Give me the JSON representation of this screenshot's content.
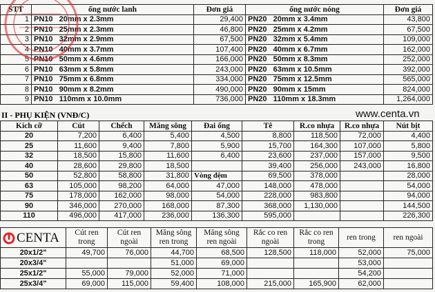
{
  "stamp_text": "TRÁCH NHIỆM HỮU HẠN XÂY DỰNG ... ANH VIỆT",
  "pipes": {
    "headers": [
      "STT",
      "ống nước lanh",
      "Đơn giá",
      "ống nước nóng",
      "Đơn giá"
    ],
    "rows": [
      [
        "1",
        "PN10   20mm x 2.3mm",
        "29,400",
        "PN20   20mm x 3.4mm",
        "43,800"
      ],
      [
        "2",
        "PN10   25mm x 2.3mm",
        "46,800",
        "PN20   25mm x 4.2mm",
        "67,500"
      ],
      [
        "3",
        "PN10   32mm x 2.9mm",
        "67,500",
        "PN20   32mm x 5.4mm",
        "109,000"
      ],
      [
        "4",
        "PN10   40mm x 3.7mm",
        "107,400",
        "PN20   40mm x 6.7mm",
        "162,000"
      ],
      [
        "5",
        "PN10   50mm x 4.6mm",
        "166,000",
        "PN20   50mm x 8.3mm",
        "252,000"
      ],
      [
        "6",
        "PN10   63mm x 5.8mm",
        "243,000",
        "PN20   63mm x 10.5mm",
        "392,000"
      ],
      [
        "7",
        "PN10   75mm x 6.8mm",
        "334,000",
        "PN20   75mm x 12.5mm",
        "565,000"
      ],
      [
        "8",
        "PN10   90mm x 8.2mm",
        "490,000",
        "PN20   90mm x 15mm",
        "824,000"
      ],
      [
        "9",
        "PN10   110mm x 10.0mm",
        "736,000",
        "PN20   110mm x 18.3mm",
        "1,264,000"
      ]
    ]
  },
  "fittings": {
    "title": "II - PHỤ KIỆN (VNĐ/C)",
    "headers": [
      "Kích cỡ",
      "Cút",
      "Chếch",
      "Măng sông",
      "Đai ống",
      "Tê",
      "R.co nhựa",
      "R.co nhựa",
      "Nút bịt"
    ],
    "rows": [
      [
        "20",
        "7,200",
        "6,400",
        "5,400",
        "4,500",
        "8,800",
        "118,500",
        "72,000",
        "4,400"
      ],
      [
        "25",
        "11,600",
        "9,400",
        "7,800",
        "5,900",
        "15,700",
        "164,300",
        "107,000",
        "5,800"
      ],
      [
        "32",
        "18,500",
        "15,800",
        "11,600",
        "6,400",
        "23,600",
        "237,000",
        "157,000",
        "9,500"
      ],
      [
        "40",
        "28,600",
        "29,800",
        "18,500",
        "",
        "39,400",
        "256,000",
        "243,000",
        "16,800"
      ],
      [
        "50",
        "52,800",
        "58,800",
        "31,800",
        "Vòng đệm",
        "69,500",
        "378,000",
        "",
        "28,000"
      ],
      [
        "63",
        "105,000",
        "98,200",
        "64,000",
        "47,000",
        "148,000",
        "478,000",
        "",
        "54,000"
      ],
      [
        "75",
        "178,000",
        "162,000",
        "98,000",
        "54,000",
        "228,000",
        "983,800",
        "",
        "94,000"
      ],
      [
        "90",
        "346,000",
        "270,000",
        "168,000",
        "87,300",
        "368,000",
        "1,130,000",
        "",
        "144,500"
      ],
      [
        "110",
        "496,000",
        "417,000",
        "236,000",
        "136,300",
        "595,000",
        "",
        "",
        "226,300"
      ]
    ]
  },
  "threaded": {
    "headers": [
      "",
      "Cút ren trong",
      "Cút ren ngoài",
      "Măng sông ren trong",
      "Măng sông ren ngoài",
      "Rắc co ren ngoài",
      "Rắc co ren trong",
      "ren trong",
      "ren ngoài"
    ],
    "rows": [
      [
        "20x1/2\"",
        "49,700",
        "76,000",
        "44,700",
        "68,500",
        "128,500",
        "118,000",
        "52,000",
        "75,000"
      ],
      [
        "20x3/4\"",
        "",
        "",
        "51,000",
        "69,000",
        "",
        "",
        "53,000",
        ""
      ],
      [
        "25x1/2\"",
        "55,000",
        "79,000",
        "52,000",
        "71,000",
        "",
        "",
        "54,200",
        ""
      ],
      [
        "25x3/4\"",
        "69,000",
        "115,000",
        "59,400",
        "108,000",
        "215,000",
        "165,900",
        "62,000",
        ""
      ]
    ]
  },
  "watermark": {
    "logo": "CENTA",
    "website": "www.centa.vn"
  },
  "colors": {
    "stamp": "#e0242a",
    "logo": "#e0242a"
  }
}
